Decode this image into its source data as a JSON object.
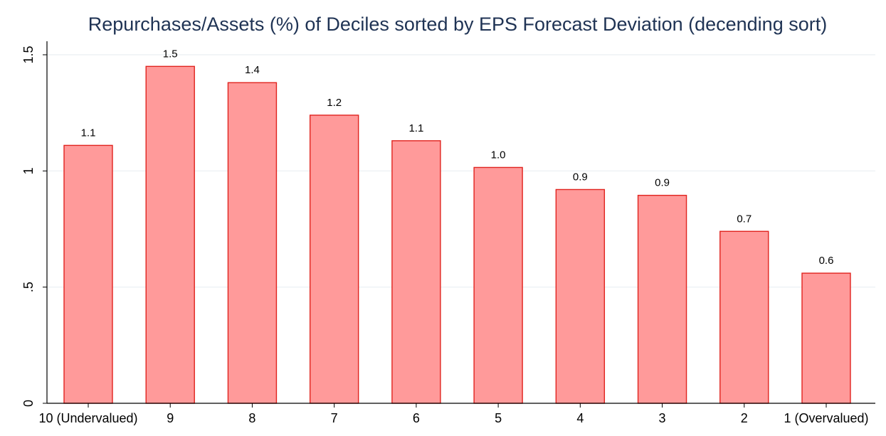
{
  "chart_data": {
    "type": "bar",
    "title": "Repurchases/Assets (%) of Deciles sorted by EPS Forecast Deviation (decending sort)",
    "xlabel": "",
    "ylabel": "",
    "categories": [
      "10 (Undervalued)",
      "9",
      "8",
      "7",
      "6",
      "5",
      "4",
      "3",
      "2",
      "1 (Overvalued)"
    ],
    "values": [
      1.11,
      1.45,
      1.38,
      1.24,
      1.13,
      1.015,
      0.92,
      0.895,
      0.74,
      0.56
    ],
    "data_labels": [
      "1.1",
      "1.5",
      "1.4",
      "1.2",
      "1.1",
      "1.0",
      "0.9",
      "0.9",
      "0.7",
      "0.6"
    ],
    "ylim": [
      0,
      1.5
    ],
    "yticks": [
      0,
      0.5,
      1,
      1.5
    ],
    "ytick_labels": [
      "0",
      ".5",
      "1",
      "1.5"
    ],
    "grid": true,
    "legend": "none",
    "colors": {
      "bar_fill": "#ff9a9a",
      "bar_stroke": "#e0231e",
      "grid": "#eaeff2",
      "title": "#1f3354",
      "axis": "#000000"
    }
  }
}
